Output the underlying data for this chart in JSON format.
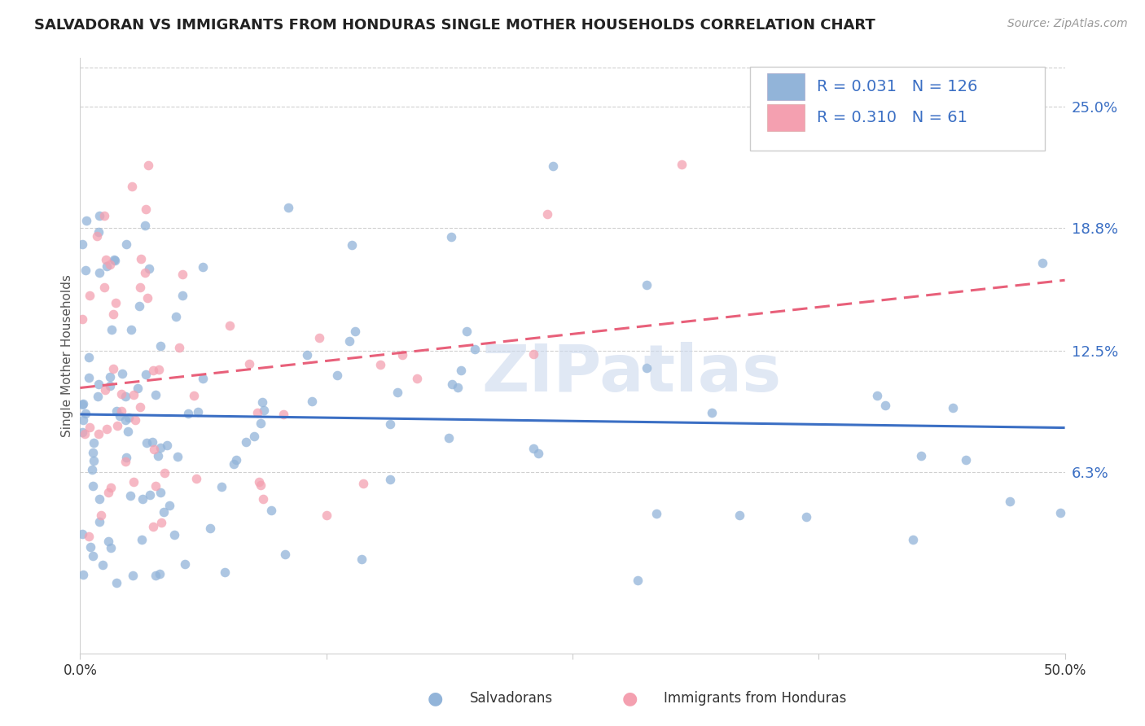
{
  "title": "SALVADORAN VS IMMIGRANTS FROM HONDURAS SINGLE MOTHER HOUSEHOLDS CORRELATION CHART",
  "source": "Source: ZipAtlas.com",
  "ylabel": "Single Mother Households",
  "ytick_labels": [
    "6.3%",
    "12.5%",
    "18.8%",
    "25.0%"
  ],
  "ytick_values": [
    0.063,
    0.125,
    0.188,
    0.25
  ],
  "xlim": [
    0.0,
    0.5
  ],
  "ylim": [
    -0.03,
    0.275
  ],
  "legend_blue_label": "Salvadorans",
  "legend_pink_label": "Immigrants from Honduras",
  "R_blue": 0.031,
  "N_blue": 126,
  "R_pink": 0.31,
  "N_pink": 61,
  "blue_color": "#92B4D9",
  "pink_color": "#F4A0B0",
  "blue_line_color": "#3B6FC4",
  "pink_line_color": "#E8607A",
  "watermark": "ZIPatlas",
  "title_fontsize": 13,
  "source_color": "#999999"
}
